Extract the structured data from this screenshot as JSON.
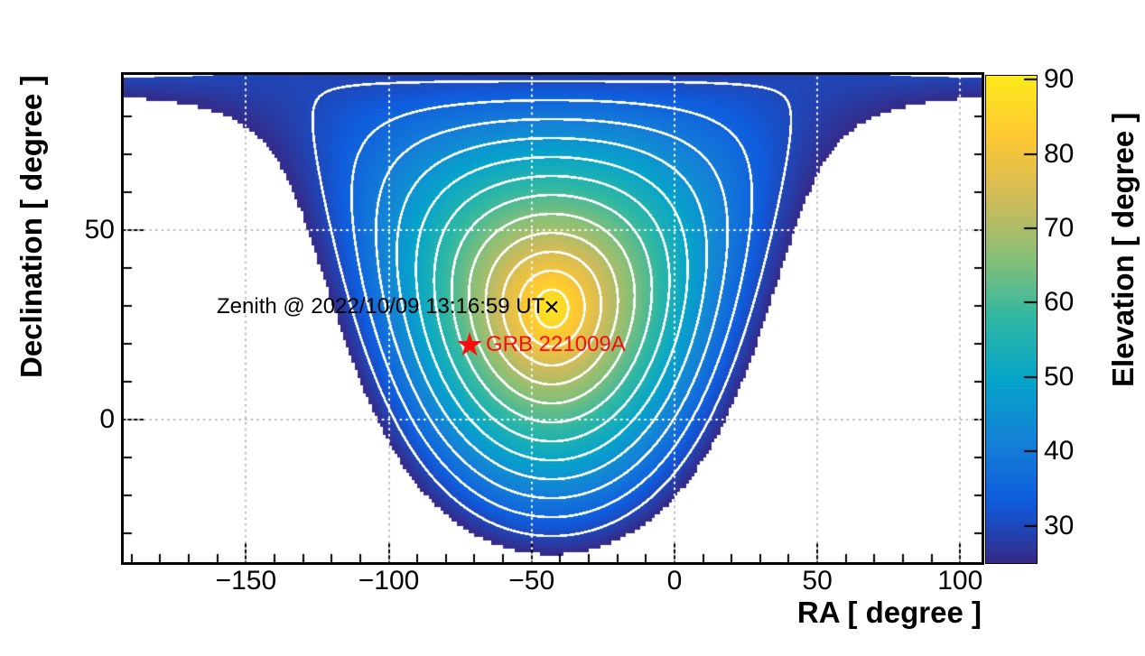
{
  "figure": {
    "background": "#ffffff",
    "annotations": {
      "zenith_label": "Zenith @ 2022/10/09 13:16:59 UT",
      "zenith_marker_glyph": "×",
      "star_glyph": "★",
      "grb_label": "GRB 221009A",
      "grb_color": "#fb0d0e",
      "text_color": "#000000"
    },
    "grid": {
      "color_on_white": "#bdbdbd",
      "color_on_map": "#ffffff",
      "style": "dotted"
    },
    "frame_color": "#000000"
  },
  "chart_data": {
    "type": "heatmap",
    "subtype": "sky-elevation-map-with-contours",
    "xlabel": "RA [ degree ]",
    "ylabel": "Declination [ degree ]",
    "zlabel": "Elevation [ degree ]",
    "x_range": [
      -192.8,
      107.5
    ],
    "y_range": [
      -37.6,
      90.95
    ],
    "z_range": [
      25,
      90.5
    ],
    "x_major_ticks": [
      -150,
      -100,
      -50,
      0,
      50,
      100
    ],
    "x_minor_step": 10,
    "y_major_ticks": [
      0,
      50
    ],
    "y_minor_step": 10,
    "z_ticks": [
      30,
      40,
      50,
      60,
      70,
      80,
      90
    ],
    "grid_x": [
      -150,
      -100,
      -50,
      0,
      50,
      100
    ],
    "grid_y": [
      0,
      50
    ],
    "contour_levels": [
      30,
      35,
      40,
      45,
      50,
      55,
      60,
      65,
      70,
      75,
      80,
      85
    ],
    "contour_color": "#ffffff",
    "bin_deg": 1,
    "model": "elevation = asin( sin(dec_zenith)sin(dec) + cos(dec_zenith)cos(dec)cos(ra - ra_zenith) )",
    "zenith": {
      "ra": -43.1,
      "dec": 29.4
    },
    "grb": {
      "ra": -71.74,
      "dec": 19.77
    },
    "palette": {
      "name": "kBird",
      "stops": [
        [
          0.0,
          "#352A87"
        ],
        [
          0.125,
          "#0F5CDD"
        ],
        [
          0.25,
          "#1481D6"
        ],
        [
          0.375,
          "#06A4CA"
        ],
        [
          0.5,
          "#2EB7A4"
        ],
        [
          0.625,
          "#87BF77"
        ],
        [
          0.75,
          "#D1BB59"
        ],
        [
          0.875,
          "#FEC832"
        ],
        [
          1.0,
          "#FBEA1C"
        ]
      ]
    }
  }
}
